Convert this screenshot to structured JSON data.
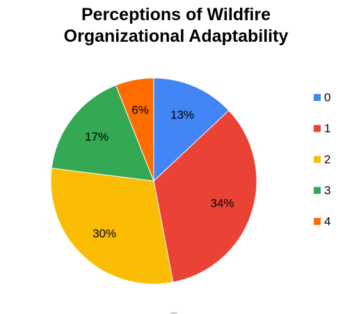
{
  "chart_data": {
    "type": "pie",
    "title": "Perceptions of Wildfire Organizational Adaptability",
    "title_lines": [
      "Perceptions of Wildfire",
      "Organizational Adaptability"
    ],
    "categories": [
      "0",
      "1",
      "2",
      "3",
      "4"
    ],
    "values": [
      13,
      34,
      30,
      17,
      6
    ],
    "labels": [
      "13%",
      "34%",
      "30%",
      "17%",
      "6%"
    ],
    "colors": [
      "#4285F4",
      "#EA4335",
      "#FBBC04",
      "#34A853",
      "#FF6D01"
    ],
    "legend_position": "right"
  }
}
